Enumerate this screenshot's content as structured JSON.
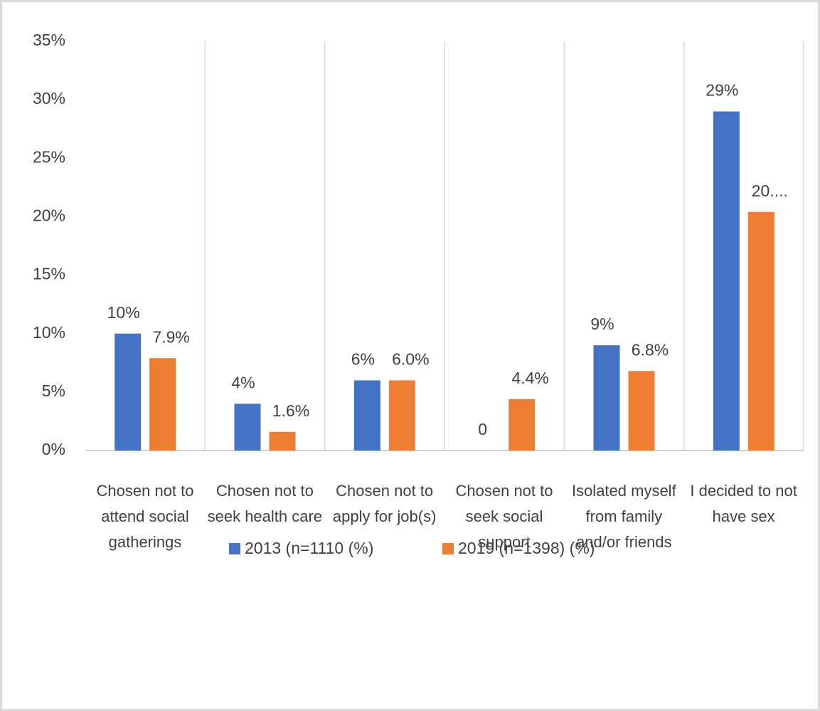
{
  "chart_data": {
    "type": "bar",
    "categories": [
      "Chosen not to attend social gatherings",
      "Chosen not to seek health care",
      "Chosen not to apply for job(s)",
      "Chosen not to seek social support",
      "Isolated myself from family and/or friends",
      "I decided to not have sex"
    ],
    "series": [
      {
        "name": "2013 (n=1110 (%)",
        "color": "#4472c4",
        "values": [
          10,
          4,
          6,
          0,
          9,
          29
        ],
        "value_labels": [
          "10%",
          "4%",
          "6%",
          "0",
          "9%",
          "29%"
        ]
      },
      {
        "name": "2019 (n=1398) (%)",
        "color": "#ed7d31",
        "values": [
          7.9,
          1.6,
          6.0,
          4.4,
          6.8,
          20.4
        ],
        "value_labels": [
          "7.9%",
          "1.6%",
          "6.0%",
          "4.4%",
          "6.8%",
          "20...."
        ]
      }
    ],
    "ylim": [
      0,
      35
    ],
    "yticks": [
      {
        "value": 0,
        "label": "0%"
      },
      {
        "value": 5,
        "label": "5%"
      },
      {
        "value": 10,
        "label": "10%"
      },
      {
        "value": 15,
        "label": "15%"
      },
      {
        "value": 20,
        "label": "20%"
      },
      {
        "value": 25,
        "label": "25%"
      },
      {
        "value": 30,
        "label": "30%"
      },
      {
        "value": 35,
        "label": "35%"
      }
    ],
    "grid": false,
    "legend": "bottom"
  }
}
